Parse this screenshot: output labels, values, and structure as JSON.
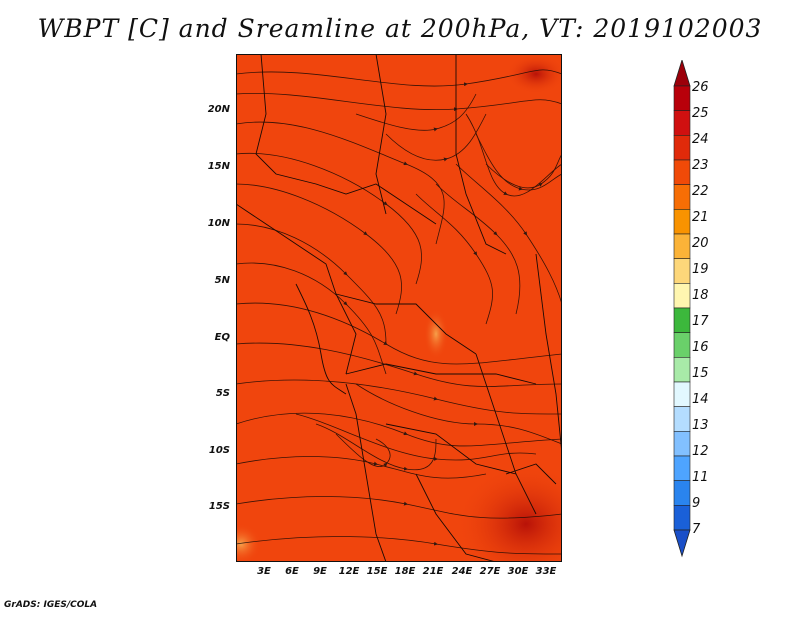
{
  "title": "WBPT [C] and Sreamline at 200hPa, VT: 2019102003",
  "credit": "GrADS: IGES/COLA",
  "axes": {
    "lat_labels": [
      "20N",
      "15N",
      "10N",
      "5N",
      "EQ",
      "5S",
      "10S",
      "15S"
    ],
    "lon_labels": [
      "3E",
      "6E",
      "9E",
      "12E",
      "15E",
      "18E",
      "21E",
      "24E",
      "27E",
      "30E",
      "33E"
    ]
  },
  "colorbar": {
    "labels": [
      "26",
      "25",
      "24",
      "23",
      "22",
      "21",
      "20",
      "19",
      "18",
      "17",
      "16",
      "15",
      "14",
      "13",
      "12",
      "11",
      "9",
      "7"
    ],
    "colors": [
      "#b8000a",
      "#d01010",
      "#e02a0a",
      "#f04a08",
      "#f76e05",
      "#f99300",
      "#fbb338",
      "#fdd77a",
      "#fff6b0",
      "#3cb83c",
      "#6ad06a",
      "#a8eaa8",
      "#e2f8ff",
      "#b4ddff",
      "#82c0ff",
      "#4ea4ff",
      "#2a84ee",
      "#1a60d8"
    ]
  },
  "field": {
    "dominant_color": "#f0450d",
    "warm_color": "#cc1d0c",
    "cool_color": "#f58a3a"
  }
}
